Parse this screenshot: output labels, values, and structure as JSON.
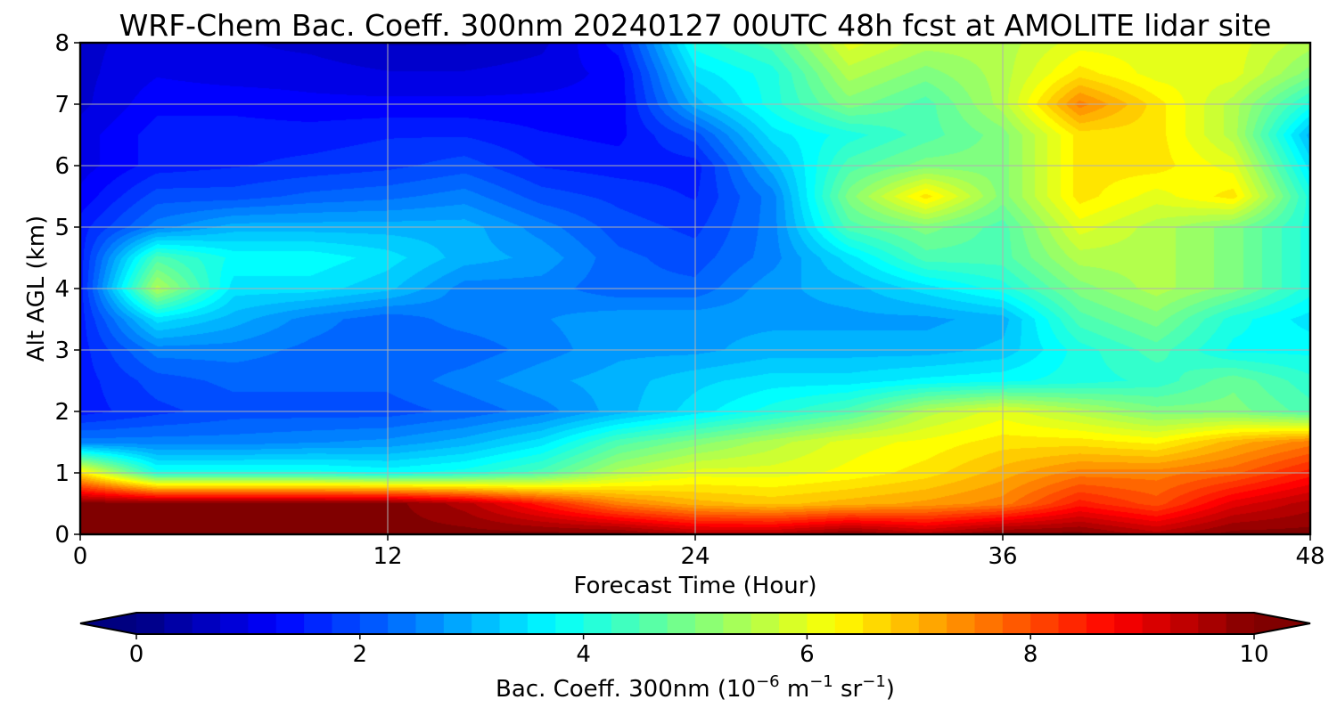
{
  "chart_data": {
    "type": "heatmap",
    "title": "WRF-Chem Bac. Coeff. 300nm  20240127 00UTC 48h fcst at AMOLITE lidar site",
    "xlabel": "Forecast Time (Hour)",
    "ylabel": "Alt AGL (km)",
    "xlim": [
      0,
      48
    ],
    "ylim": [
      0,
      8
    ],
    "xticks": [
      0,
      12,
      24,
      36,
      48
    ],
    "yticks": [
      0,
      1,
      2,
      3,
      4,
      5,
      6,
      7,
      8
    ],
    "grid": true,
    "colormap": "jet",
    "colorbar": {
      "orientation": "horizontal",
      "range": [
        0,
        10
      ],
      "ticks": [
        0,
        2,
        4,
        6,
        8,
        10
      ],
      "extend": "both",
      "label_main": "Bac. Coeff. 300nm  (10",
      "label_exp1": "−6",
      "label_mid": " m",
      "label_exp2": "−1",
      "label_mid2": " sr",
      "label_exp3": "−1",
      "label_end": ")"
    },
    "x": [
      0,
      3,
      6,
      9,
      12,
      15,
      18,
      21,
      24,
      27,
      30,
      33,
      36,
      39,
      42,
      45,
      48
    ],
    "y": [
      0,
      0.5,
      1,
      1.5,
      2,
      2.5,
      3,
      3.5,
      4,
      4.5,
      5,
      5.5,
      6,
      6.5,
      7,
      7.5,
      8
    ],
    "z": [
      [
        10.0,
        10.0,
        10.0,
        10.0,
        10.0,
        10.0,
        10.0,
        10.0,
        9.5,
        9.5,
        10.0,
        9.5,
        10.0,
        10.0,
        9.5,
        10.0,
        10.0
      ],
      [
        10.0,
        10.0,
        10.0,
        10.0,
        10.0,
        9.5,
        8.5,
        7.5,
        7.0,
        6.8,
        7.0,
        7.2,
        7.5,
        8.5,
        8.0,
        9.0,
        9.5
      ],
      [
        6.5,
        4.0,
        4.0,
        4.0,
        3.8,
        4.0,
        4.5,
        5.5,
        6.0,
        6.0,
        6.2,
        6.5,
        7.0,
        7.5,
        7.5,
        7.8,
        8.5
      ],
      [
        2.5,
        2.5,
        2.5,
        2.6,
        2.7,
        3.0,
        3.5,
        4.5,
        5.0,
        5.5,
        6.0,
        6.2,
        6.5,
        6.5,
        6.3,
        7.0,
        7.5
      ],
      [
        1.5,
        1.8,
        2.0,
        2.0,
        2.0,
        2.2,
        2.5,
        3.0,
        3.5,
        4.0,
        4.5,
        5.5,
        6.0,
        5.5,
        5.0,
        5.0,
        4.5
      ],
      [
        1.5,
        2.0,
        2.2,
        2.2,
        2.2,
        2.5,
        2.8,
        3.0,
        3.3,
        3.5,
        3.5,
        3.7,
        3.8,
        4.0,
        4.2,
        4.8,
        4.2
      ],
      [
        1.5,
        2.5,
        2.5,
        2.3,
        2.2,
        2.2,
        2.5,
        2.8,
        2.8,
        3.0,
        3.0,
        3.0,
        3.2,
        4.0,
        4.5,
        3.8,
        3.8
      ],
      [
        1.5,
        3.5,
        3.0,
        2.5,
        2.2,
        2.5,
        2.6,
        2.8,
        2.8,
        2.8,
        2.8,
        2.8,
        3.0,
        4.5,
        5.0,
        4.0,
        3.5
      ],
      [
        1.5,
        5.5,
        3.5,
        3.5,
        3.2,
        2.5,
        2.5,
        2.2,
        2.2,
        2.8,
        3.0,
        3.5,
        4.0,
        5.0,
        5.5,
        5.0,
        4.0
      ],
      [
        1.5,
        4.5,
        3.8,
        3.8,
        3.5,
        3.0,
        2.8,
        2.2,
        2.0,
        2.5,
        3.5,
        4.5,
        4.5,
        5.5,
        5.5,
        5.0,
        4.0
      ],
      [
        1.5,
        2.5,
        3.0,
        3.0,
        3.0,
        3.0,
        2.5,
        2.0,
        1.8,
        2.5,
        4.5,
        5.0,
        4.5,
        6.0,
        5.5,
        5.0,
        4.0
      ],
      [
        1.2,
        2.0,
        2.0,
        2.2,
        2.3,
        2.5,
        2.0,
        1.8,
        1.6,
        2.5,
        5.0,
        6.5,
        5.0,
        6.5,
        6.0,
        6.5,
        4.0
      ],
      [
        1.0,
        1.5,
        1.6,
        1.7,
        1.8,
        2.0,
        1.6,
        1.5,
        1.5,
        3.0,
        4.5,
        5.0,
        5.0,
        6.5,
        6.5,
        6.0,
        3.5
      ],
      [
        1.0,
        1.5,
        1.5,
        1.5,
        1.6,
        1.6,
        1.4,
        1.3,
        2.0,
        3.5,
        4.0,
        4.5,
        5.0,
        6.5,
        6.5,
        5.5,
        3.0
      ],
      [
        0.8,
        1.3,
        1.3,
        1.2,
        1.2,
        1.2,
        1.2,
        1.2,
        3.0,
        4.0,
        5.0,
        4.5,
        5.5,
        7.5,
        6.5,
        5.5,
        4.0
      ],
      [
        0.8,
        1.1,
        1.0,
        1.0,
        0.9,
        0.9,
        1.0,
        1.2,
        3.5,
        4.0,
        5.5,
        5.0,
        5.5,
        6.5,
        6.0,
        6.0,
        5.0
      ],
      [
        0.8,
        1.0,
        0.9,
        0.8,
        0.6,
        0.6,
        0.8,
        1.5,
        4.0,
        4.5,
        6.0,
        5.5,
        5.5,
        6.0,
        6.0,
        6.0,
        5.5
      ]
    ]
  }
}
